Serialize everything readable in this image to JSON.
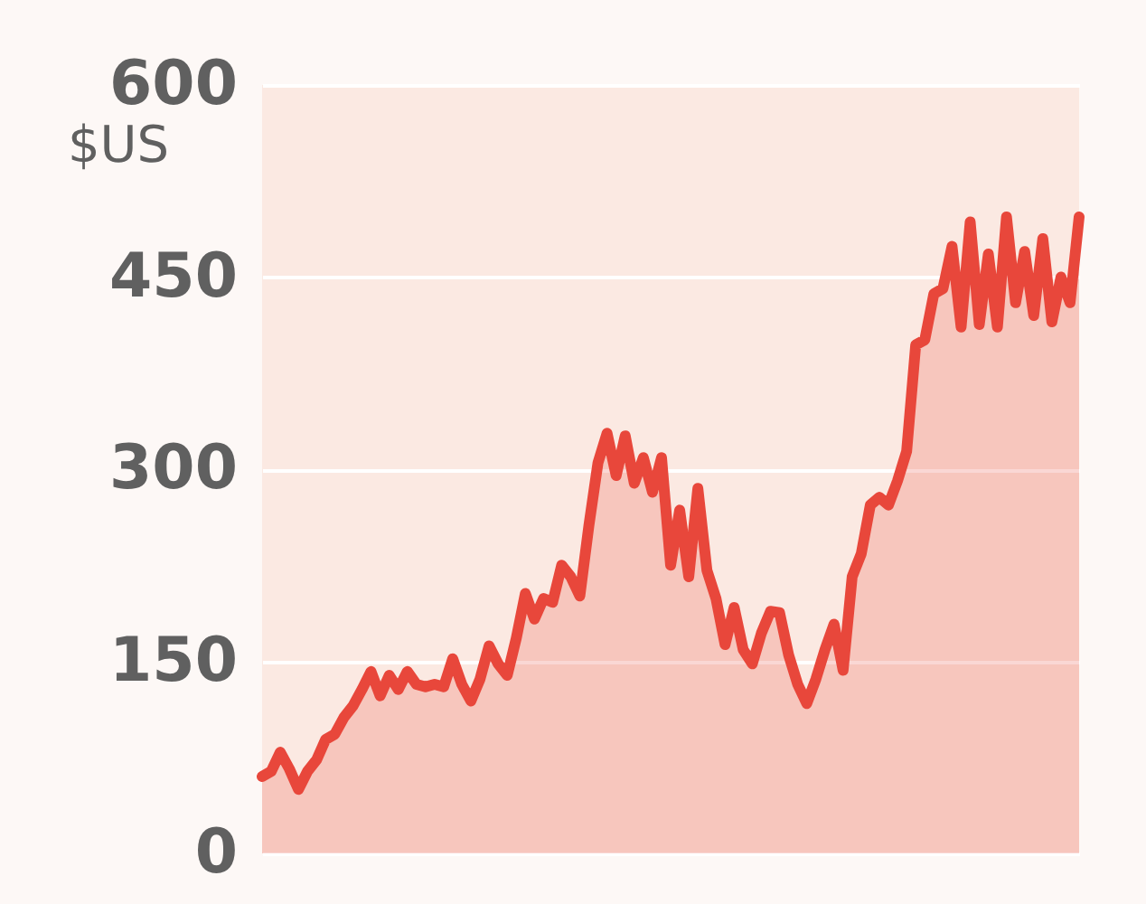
{
  "chart_data": {
    "type": "area",
    "ylabel": "$US",
    "ylim": [
      0,
      600
    ],
    "yticks": [
      0,
      150,
      300,
      450,
      600
    ],
    "grid": "y",
    "tick_labels": "y",
    "categories": [
      null,
      null,
      null,
      null,
      null,
      null,
      null,
      null,
      null,
      null,
      null,
      null,
      null,
      null,
      null,
      null,
      null,
      null,
      null,
      null,
      null,
      null,
      null,
      null,
      null,
      null,
      null,
      null,
      null,
      null,
      null,
      null,
      null,
      null,
      null,
      null,
      null,
      null,
      null,
      null,
      null,
      null,
      null,
      null,
      null,
      null,
      null,
      null,
      null,
      null,
      null,
      null,
      null,
      null,
      null,
      null,
      null,
      null,
      null,
      null,
      null,
      null,
      null,
      null,
      null,
      null,
      null,
      null,
      null,
      null,
      null,
      null,
      null,
      null,
      null,
      null,
      null,
      null,
      null,
      null,
      null,
      null,
      null,
      null,
      null,
      null,
      null,
      null,
      null,
      null,
      null
    ],
    "series": [
      {
        "color": "#e8473b",
        "values": [
          60,
          64,
          79,
          66,
          50,
          64,
          73,
          89,
          93,
          106,
          115,
          128,
          142,
          123,
          139,
          128,
          142,
          132,
          130,
          132,
          130,
          152,
          132,
          119,
          136,
          162,
          148,
          139,
          168,
          203,
          183,
          199,
          196,
          225,
          216,
          201,
          256,
          305,
          328,
          295,
          326,
          289,
          309,
          282,
          309,
          225,
          268,
          216,
          285,
          221,
          199,
          163,
          192,
          159,
          148,
          172,
          189,
          188,
          155,
          132,
          117,
          136,
          159,
          179,
          143,
          216,
          234,
          272,
          278,
          272,
          291,
          314,
          397,
          401,
          437,
          441,
          474,
          411,
          493,
          413,
          468,
          411,
          497,
          430,
          470,
          420,
          480,
          415,
          450,
          430,
          497
        ]
      }
    ]
  }
}
